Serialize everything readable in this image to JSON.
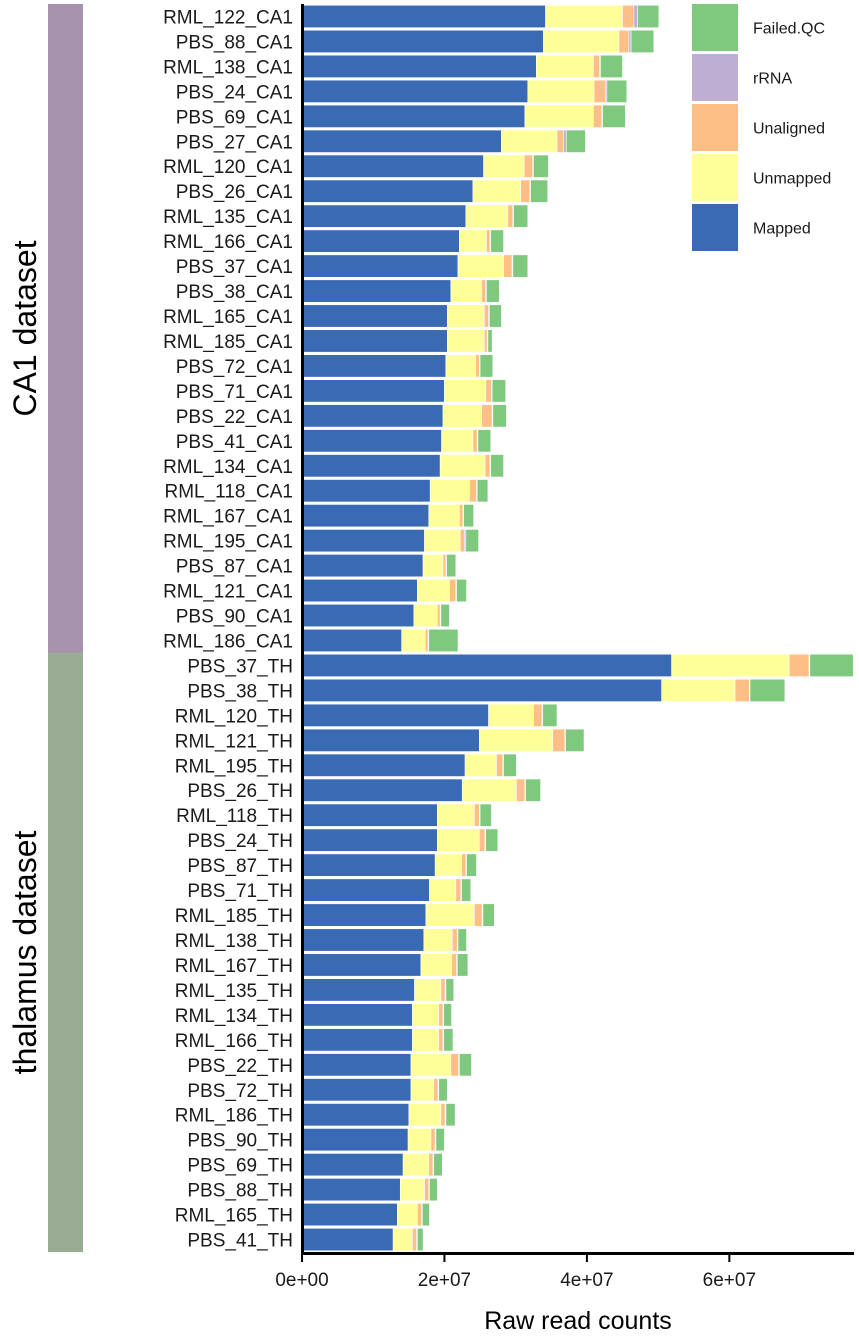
{
  "colors": {
    "Mapped": "#3b6ab5",
    "Unmapped": "#ffff99",
    "Unaligned": "#fdbf86",
    "rRNA": "#beaed4",
    "Failed.QC": "#7fc97f",
    "group_CA1": "#a692ad",
    "group_thalamus": "#9aad94"
  },
  "chart_data": {
    "type": "bar",
    "orientation": "horizontal",
    "stacked": true,
    "xlabel": "Raw read counts",
    "ylabel": "",
    "xlim": [
      0,
      77500000
    ],
    "xticks": [
      0,
      20000000,
      40000000,
      60000000
    ],
    "xtick_labels": [
      "0e+00",
      "2e+07",
      "4e+07",
      "6e+07"
    ],
    "legend_position": "top-right",
    "legend_order": [
      "Failed.QC",
      "rRNA",
      "Unaligned",
      "Unmapped",
      "Mapped"
    ],
    "stack_order": [
      "Mapped",
      "Unmapped",
      "Unaligned",
      "rRNA",
      "Failed.QC"
    ],
    "groups": [
      {
        "label": "CA1 dataset",
        "start": 0,
        "end": 25
      },
      {
        "label": "thalamus dataset",
        "start": 26,
        "end": 49
      }
    ],
    "categories": [
      "RML_122_CA1",
      "PBS_88_CA1",
      "RML_138_CA1",
      "PBS_24_CA1",
      "PBS_69_CA1",
      "PBS_27_CA1",
      "RML_120_CA1",
      "PBS_26_CA1",
      "RML_135_CA1",
      "RML_166_CA1",
      "PBS_37_CA1",
      "PBS_38_CA1",
      "RML_165_CA1",
      "RML_185_CA1",
      "PBS_72_CA1",
      "PBS_71_CA1",
      "PBS_22_CA1",
      "PBS_41_CA1",
      "RML_134_CA1",
      "RML_118_CA1",
      "RML_167_CA1",
      "RML_195_CA1",
      "PBS_87_CA1",
      "RML_121_CA1",
      "PBS_90_CA1",
      "RML_186_CA1",
      "PBS_37_TH",
      "PBS_38_TH",
      "RML_120_TH",
      "RML_121_TH",
      "RML_195_TH",
      "PBS_26_TH",
      "RML_118_TH",
      "PBS_24_TH",
      "PBS_87_TH",
      "PBS_71_TH",
      "RML_185_TH",
      "RML_138_TH",
      "RML_167_TH",
      "RML_135_TH",
      "RML_134_TH",
      "RML_166_TH",
      "PBS_22_TH",
      "PBS_72_TH",
      "RML_186_TH",
      "PBS_90_TH",
      "PBS_69_TH",
      "PBS_88_TH",
      "RML_165_TH",
      "PBS_41_TH"
    ],
    "series": [
      {
        "name": "Mapped",
        "values": [
          34200000,
          33900000,
          32900000,
          31700000,
          31300000,
          28000000,
          25500000,
          24000000,
          23000000,
          22100000,
          21900000,
          20900000,
          20400000,
          20400000,
          20200000,
          20000000,
          19800000,
          19600000,
          19400000,
          18000000,
          17800000,
          17200000,
          17000000,
          16200000,
          15700000,
          14000000,
          51900000,
          50500000,
          26200000,
          24900000,
          22900000,
          22500000,
          19000000,
          19000000,
          18700000,
          17900000,
          17400000,
          17100000,
          16700000,
          15800000,
          15500000,
          15500000,
          15300000,
          15300000,
          15000000,
          14900000,
          14200000,
          13800000,
          13400000,
          12800000
        ]
      },
      {
        "name": "Unmapped",
        "values": [
          10800000,
          10600000,
          8000000,
          9300000,
          9600000,
          7800000,
          5700000,
          6700000,
          5900000,
          3800000,
          6400000,
          4300000,
          5200000,
          5200000,
          4200000,
          5800000,
          5400000,
          4400000,
          6300000,
          5500000,
          4300000,
          5000000,
          2800000,
          4500000,
          3300000,
          3300000,
          16500000,
          10300000,
          6300000,
          10300000,
          4400000,
          7600000,
          5200000,
          5900000,
          3700000,
          3700000,
          6800000,
          4000000,
          4300000,
          3700000,
          3700000,
          3700000,
          5600000,
          3200000,
          4500000,
          3200000,
          3600000,
          3400000,
          2800000,
          2700000
        ]
      },
      {
        "name": "Unaligned",
        "values": [
          1600000,
          1400000,
          900000,
          1600000,
          1200000,
          900000,
          1200000,
          1300000,
          700000,
          500000,
          1200000,
          600000,
          600000,
          400000,
          500000,
          800000,
          1500000,
          600000,
          700000,
          1000000,
          500000,
          600000,
          400000,
          900000,
          400000,
          400000,
          2800000,
          2000000,
          1200000,
          1700000,
          900000,
          1200000,
          700000,
          800000,
          600000,
          700000,
          1100000,
          700000,
          700000,
          600000,
          600000,
          600000,
          1100000,
          600000,
          600000,
          600000,
          600000,
          600000,
          600000,
          600000
        ]
      },
      {
        "name": "rRNA",
        "values": [
          500000,
          300000,
          100000,
          200000,
          100000,
          400000,
          100000,
          100000,
          100000,
          100000,
          100000,
          100000,
          100000,
          100000,
          100000,
          100000,
          100000,
          100000,
          100000,
          100000,
          100000,
          200000,
          100000,
          100000,
          100000,
          100000,
          100000,
          100000,
          100000,
          100000,
          100000,
          100000,
          100000,
          100000,
          100000,
          100000,
          100000,
          100000,
          100000,
          100000,
          100000,
          100000,
          100000,
          100000,
          100000,
          100000,
          100000,
          100000,
          100000,
          100000
        ]
      },
      {
        "name": "Failed.QC",
        "values": [
          3000000,
          3200000,
          3100000,
          2800000,
          3200000,
          2700000,
          2100000,
          2400000,
          2000000,
          1800000,
          2100000,
          1800000,
          1700000,
          600000,
          1800000,
          1900000,
          1900000,
          1800000,
          1800000,
          1500000,
          1400000,
          1800000,
          1300000,
          1400000,
          1200000,
          4100000,
          6100000,
          4900000,
          2000000,
          2600000,
          1800000,
          2100000,
          1600000,
          1700000,
          1400000,
          1300000,
          1600000,
          1200000,
          1500000,
          1100000,
          1100000,
          1300000,
          1700000,
          1200000,
          1300000,
          1200000,
          1200000,
          1100000,
          1000000,
          800000
        ]
      }
    ]
  }
}
